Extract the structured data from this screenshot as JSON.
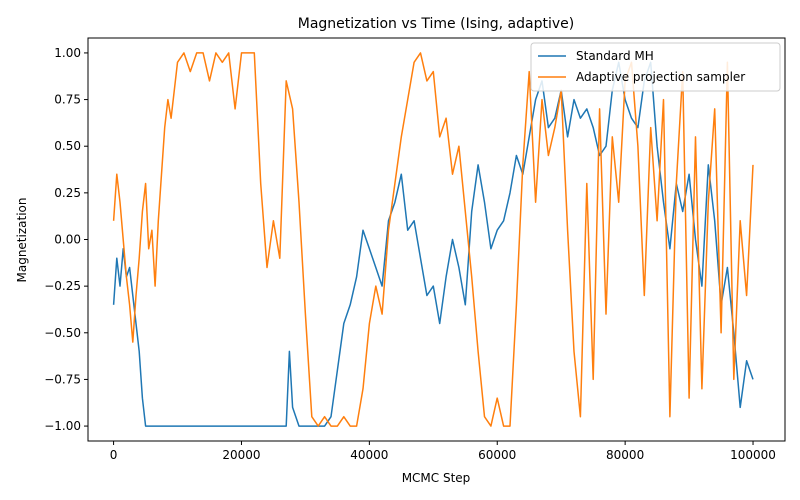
{
  "chart_data": {
    "type": "line",
    "title": "Magnetization vs Time (Ising, adaptive)",
    "xlabel": "MCMC Step",
    "ylabel": "Magnetization",
    "xlim": [
      -4000,
      105000
    ],
    "ylim": [
      -1.08,
      1.08
    ],
    "xticks": [
      0,
      20000,
      40000,
      60000,
      80000,
      100000
    ],
    "xtick_labels": [
      "0",
      "20000",
      "40000",
      "60000",
      "80000",
      "100000"
    ],
    "yticks": [
      -1.0,
      -0.75,
      -0.5,
      -0.25,
      0.0,
      0.25,
      0.5,
      0.75,
      1.0
    ],
    "ytick_labels": [
      "−1.00",
      "−0.75",
      "−0.50",
      "−0.25",
      "0.00",
      "0.25",
      "0.50",
      "0.75",
      "1.00"
    ],
    "grid": false,
    "legend_position": "top-right",
    "series": [
      {
        "name": "Standard MH",
        "color": "#1f77b4",
        "x": [
          0,
          500,
          1000,
          1500,
          2000,
          2500,
          3000,
          3500,
          4000,
          4500,
          5000,
          6000,
          8000,
          10000,
          12000,
          14000,
          16000,
          18000,
          20000,
          22000,
          24000,
          26000,
          27000,
          27500,
          28000,
          29000,
          30000,
          31000,
          32000,
          33000,
          34000,
          35000,
          36000,
          37000,
          38000,
          39000,
          40000,
          41000,
          42000,
          43000,
          44000,
          45000,
          46000,
          47000,
          48000,
          49000,
          50000,
          51000,
          52000,
          53000,
          54000,
          55000,
          56000,
          57000,
          58000,
          59000,
          60000,
          61000,
          62000,
          63000,
          64000,
          65000,
          66000,
          67000,
          68000,
          69000,
          70000,
          71000,
          72000,
          73000,
          74000,
          75000,
          76000,
          77000,
          78000,
          79000,
          80000,
          81000,
          82000,
          83000,
          84000,
          85000,
          86000,
          87000,
          88000,
          89000,
          90000,
          91000,
          92000,
          93000,
          94000,
          95000,
          96000,
          97000,
          98000,
          99000,
          100000
        ],
        "values": [
          -0.35,
          -0.1,
          -0.25,
          -0.05,
          -0.2,
          -0.15,
          -0.3,
          -0.45,
          -0.6,
          -0.85,
          -1.0,
          -1.0,
          -1.0,
          -1.0,
          -1.0,
          -1.0,
          -1.0,
          -1.0,
          -1.0,
          -1.0,
          -1.0,
          -1.0,
          -1.0,
          -0.6,
          -0.9,
          -1.0,
          -1.0,
          -1.0,
          -1.0,
          -1.0,
          -0.95,
          -0.7,
          -0.45,
          -0.35,
          -0.2,
          0.05,
          -0.05,
          -0.15,
          -0.25,
          0.1,
          0.2,
          0.35,
          0.05,
          0.1,
          -0.1,
          -0.3,
          -0.25,
          -0.45,
          -0.2,
          0.0,
          -0.15,
          -0.35,
          0.15,
          0.4,
          0.2,
          -0.05,
          0.05,
          0.1,
          0.25,
          0.45,
          0.35,
          0.55,
          0.75,
          0.85,
          0.6,
          0.65,
          0.8,
          0.55,
          0.75,
          0.65,
          0.7,
          0.6,
          0.45,
          0.5,
          0.8,
          0.95,
          0.75,
          0.65,
          0.6,
          0.85,
          0.95,
          0.5,
          0.2,
          -0.05,
          0.3,
          0.15,
          0.35,
          0.0,
          -0.25,
          0.4,
          0.1,
          -0.35,
          -0.15,
          -0.5,
          -0.9,
          -0.65,
          -0.75
        ]
      },
      {
        "name": "Adaptive projection sampler",
        "color": "#ff7f0e",
        "x": [
          0,
          500,
          1000,
          1500,
          2000,
          2500,
          3000,
          3500,
          4000,
          4500,
          5000,
          5500,
          6000,
          6500,
          7000,
          7500,
          8000,
          8500,
          9000,
          10000,
          11000,
          12000,
          13000,
          14000,
          15000,
          16000,
          17000,
          18000,
          19000,
          20000,
          21000,
          22000,
          23000,
          24000,
          25000,
          26000,
          27000,
          28000,
          29000,
          30000,
          31000,
          32000,
          33000,
          34000,
          35000,
          36000,
          37000,
          38000,
          39000,
          40000,
          41000,
          42000,
          43000,
          44000,
          45000,
          46000,
          47000,
          48000,
          49000,
          50000,
          51000,
          52000,
          53000,
          54000,
          55000,
          56000,
          57000,
          58000,
          59000,
          60000,
          61000,
          62000,
          63000,
          64000,
          65000,
          66000,
          67000,
          68000,
          69000,
          70000,
          71000,
          72000,
          73000,
          74000,
          75000,
          76000,
          77000,
          78000,
          79000,
          80000,
          81000,
          82000,
          83000,
          84000,
          85000,
          86000,
          87000,
          88000,
          89000,
          90000,
          91000,
          92000,
          93000,
          94000,
          95000,
          96000,
          97000,
          98000,
          99000,
          100000
        ],
        "values": [
          0.1,
          0.35,
          0.2,
          0.0,
          -0.2,
          -0.35,
          -0.55,
          -0.3,
          -0.1,
          0.15,
          0.3,
          -0.05,
          0.05,
          -0.25,
          0.1,
          0.35,
          0.6,
          0.75,
          0.65,
          0.95,
          1.0,
          0.9,
          1.0,
          1.0,
          0.85,
          1.0,
          0.95,
          1.0,
          0.7,
          1.0,
          1.0,
          1.0,
          0.3,
          -0.15,
          0.1,
          -0.1,
          0.85,
          0.7,
          0.2,
          -0.4,
          -0.95,
          -1.0,
          -0.95,
          -1.0,
          -1.0,
          -0.95,
          -1.0,
          -1.0,
          -0.8,
          -0.45,
          -0.25,
          -0.4,
          0.05,
          0.3,
          0.55,
          0.75,
          0.95,
          1.0,
          0.85,
          0.9,
          0.55,
          0.65,
          0.35,
          0.5,
          0.15,
          -0.2,
          -0.6,
          -0.95,
          -1.0,
          -0.85,
          -1.0,
          -1.0,
          -0.35,
          0.4,
          0.9,
          0.2,
          0.75,
          0.45,
          0.6,
          0.8,
          0.05,
          -0.6,
          -0.95,
          0.3,
          -0.75,
          0.7,
          -0.4,
          0.55,
          0.2,
          0.85,
          0.95,
          0.5,
          -0.3,
          0.6,
          0.1,
          0.75,
          -0.95,
          0.3,
          0.9,
          -0.85,
          0.55,
          -0.8,
          0.2,
          0.7,
          -0.5,
          0.95,
          -0.75,
          0.1,
          -0.3,
          0.4
        ]
      }
    ]
  }
}
